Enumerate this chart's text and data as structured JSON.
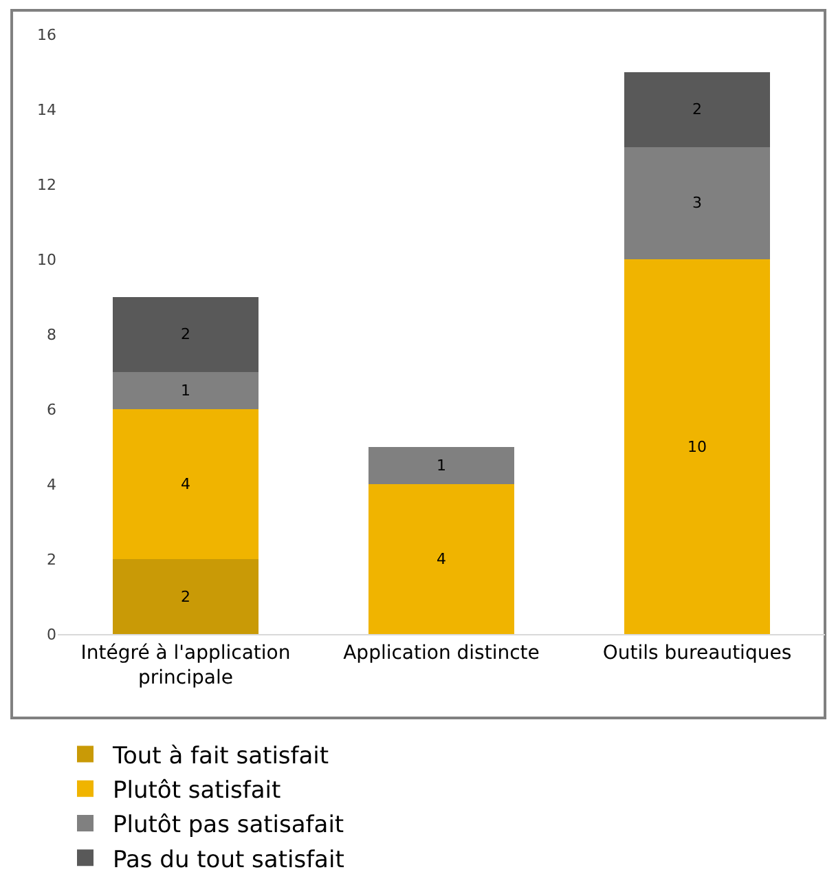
{
  "chart_data": {
    "type": "bar",
    "stacked": true,
    "categories": [
      "Intégré à l'application principale",
      "Application distincte",
      "Outils bureautiques"
    ],
    "series": [
      {
        "name": "Tout à fait satisfait",
        "color": "#c99a06",
        "values": [
          2,
          null,
          null
        ]
      },
      {
        "name": "Plutôt satisfait",
        "color": "#f0b400",
        "values": [
          4,
          4,
          10
        ]
      },
      {
        "name": "Plutôt pas satisafait",
        "color": "#808080",
        "values": [
          1,
          1,
          3
        ]
      },
      {
        "name": "Pas du tout satisfait",
        "color": "#595959",
        "values": [
          2,
          null,
          2
        ]
      }
    ],
    "ylim": [
      0,
      16
    ],
    "yticks": [
      0,
      2,
      4,
      6,
      8,
      10,
      12,
      14,
      16
    ],
    "grid": false,
    "legend": "bottom",
    "data_labels": true
  }
}
